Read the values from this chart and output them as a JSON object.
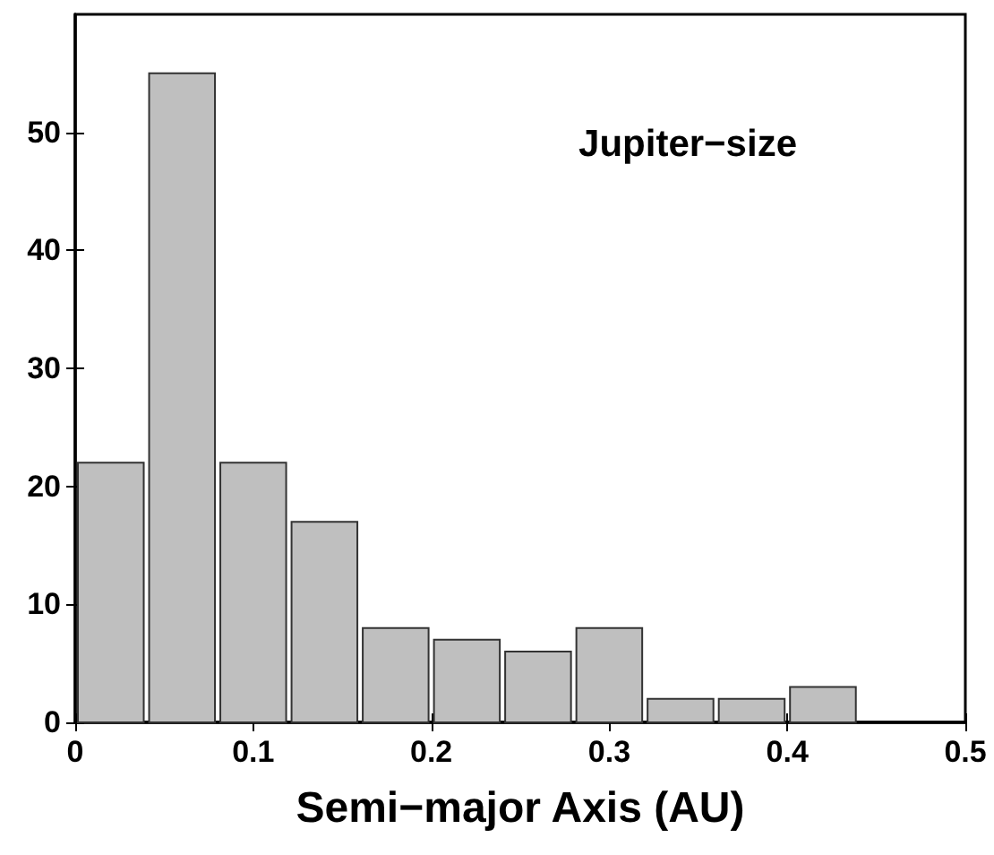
{
  "chart_data": {
    "type": "histogram",
    "xlabel": "Semi−major Axis (AU)",
    "annotations": [
      "Jupiter−size"
    ],
    "bins": [
      0,
      0.04,
      0.08,
      0.12,
      0.16,
      0.2,
      0.24,
      0.28,
      0.32,
      0.36,
      0.4,
      0.44,
      0.48
    ],
    "values": [
      22,
      55,
      22,
      17,
      8,
      7,
      6,
      8,
      2,
      2,
      3,
      0
    ],
    "color": "#bfbfbf",
    "xlim": [
      0,
      0.5
    ],
    "xticks": [
      0,
      0.1,
      0.2,
      0.3,
      0.4,
      0.5
    ],
    "ylim": [
      0,
      60
    ],
    "yticks": [
      0,
      10,
      20,
      30,
      40,
      50
    ],
    "grid": false
  }
}
